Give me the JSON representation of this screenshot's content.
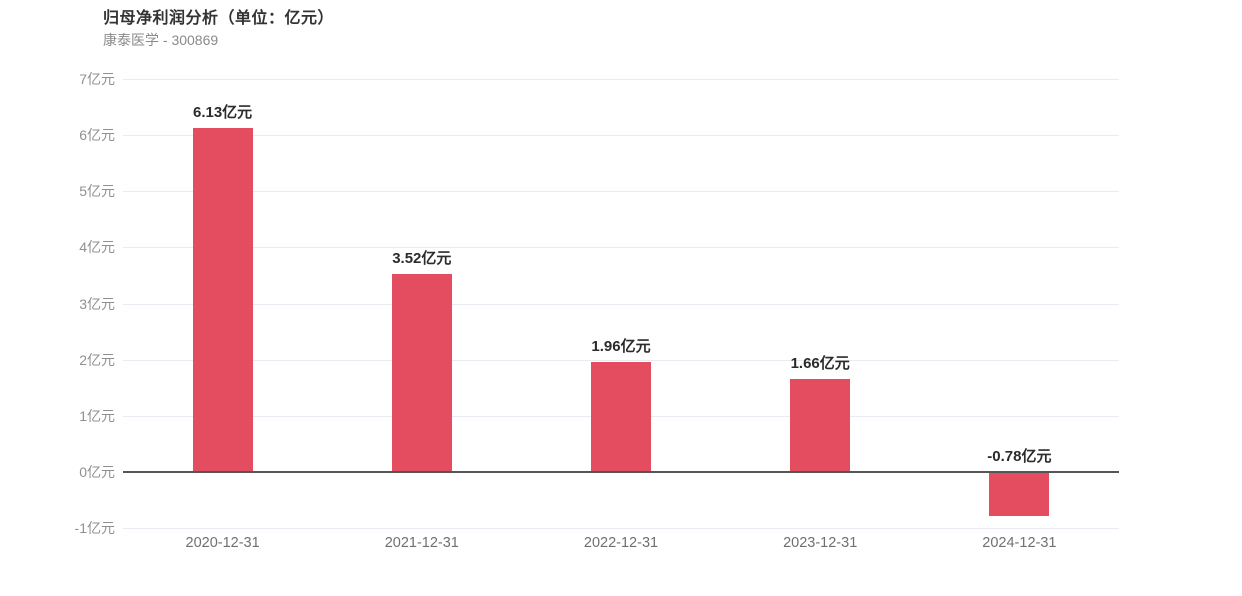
{
  "header": {
    "title": "归母净利润分析（单位：亿元）",
    "subtitle": "康泰医学 - 300869"
  },
  "chart_data": {
    "type": "bar",
    "title": "归母净利润分析（单位：亿元）",
    "subtitle": "康泰医学 - 300869",
    "unit": "亿元",
    "categories": [
      "2020-12-31",
      "2021-12-31",
      "2022-12-31",
      "2023-12-31",
      "2024-12-31"
    ],
    "values": [
      6.13,
      3.52,
      1.96,
      1.66,
      -0.78
    ],
    "value_labels": [
      "6.13亿元",
      "3.52亿元",
      "1.96亿元",
      "1.66亿元",
      "-0.78亿元"
    ],
    "ylim": [
      -1,
      7
    ],
    "ytick_values": [
      7,
      6,
      5,
      4,
      3,
      2,
      1,
      0,
      -1
    ],
    "ytick_labels": [
      "7亿元",
      "6亿元",
      "5亿元",
      "4亿元",
      "3亿元",
      "2亿元",
      "1亿元",
      "0亿元",
      "-1亿元"
    ],
    "grid": true,
    "legend_position": "none",
    "colors": {
      "bar": "#e44d60",
      "gridline": "#e9eaf2",
      "zero_line": "#555555",
      "value_label": "#2b2b2b",
      "x_label": "#707070",
      "y_label": "#909090",
      "title": "#333333",
      "subtitle": "#8a8a8a"
    }
  }
}
